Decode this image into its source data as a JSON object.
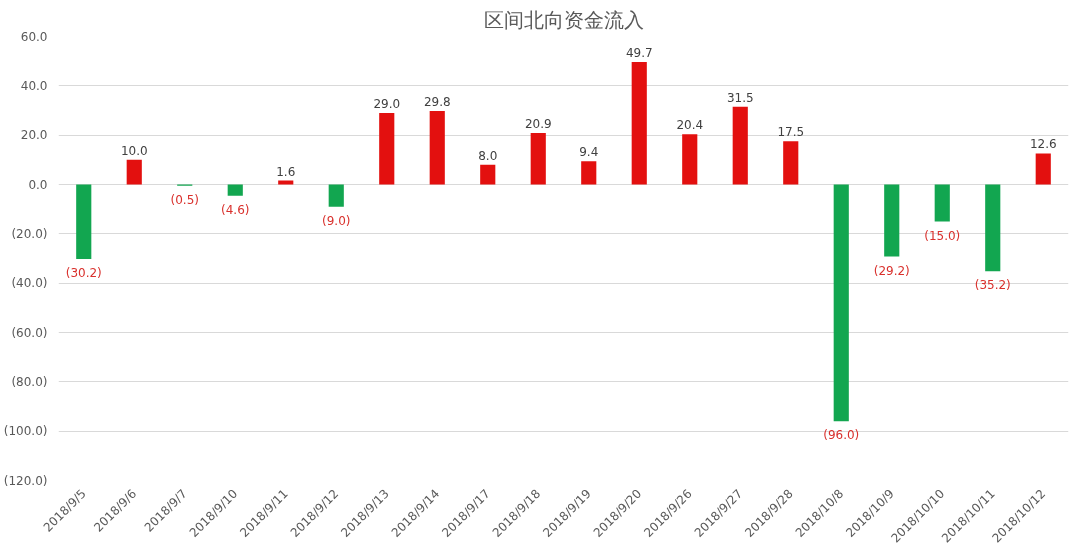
{
  "chart_data": {
    "type": "bar",
    "title": "区间北向资金流入",
    "categories": [
      "2018/9/5",
      "2018/9/6",
      "2018/9/7",
      "2018/9/10",
      "2018/9/11",
      "2018/9/12",
      "2018/9/13",
      "2018/9/14",
      "2018/9/17",
      "2018/9/18",
      "2018/9/19",
      "2018/9/20",
      "2018/9/26",
      "2018/9/27",
      "2018/9/28",
      "2018/10/8",
      "2018/10/9",
      "2018/10/10",
      "2018/10/11",
      "2018/10/12"
    ],
    "values": [
      -30.2,
      10.0,
      -0.5,
      -4.6,
      1.6,
      -9.0,
      29.0,
      29.8,
      8.0,
      20.9,
      9.4,
      49.7,
      20.4,
      31.5,
      17.5,
      -96.0,
      -29.2,
      -15.0,
      -35.2,
      12.6
    ],
    "colors": [
      "#12a650",
      "#e3100f",
      "#12a650",
      "#12a650",
      "#e3100f",
      "#12a650",
      "#e3100f",
      "#e3100f",
      "#e3100f",
      "#e3100f",
      "#e3100f",
      "#e3100f",
      "#e3100f",
      "#e3100f",
      "#e3100f",
      "#12a650",
      "#12a650",
      "#12a650",
      "#12a650",
      "#e3100f"
    ],
    "value_labels": [
      "(30.2)",
      "10.0",
      "(0.5)",
      "(4.6)",
      "1.6",
      "(9.0)",
      "29.0",
      "29.8",
      "8.0",
      "20.9",
      "9.4",
      "49.7",
      "20.4",
      "31.5",
      "17.5",
      "(96.0)",
      "(29.2)",
      "(15.0)",
      "(35.2)",
      "12.6"
    ],
    "ylim": [
      -120,
      60
    ],
    "yticks": [
      {
        "value": 60,
        "label": "60.0"
      },
      {
        "value": 40,
        "label": "40.0"
      },
      {
        "value": 20,
        "label": "20.0"
      },
      {
        "value": 0,
        "label": "0.0"
      },
      {
        "value": -20,
        "label": "(20.0)"
      },
      {
        "value": -40,
        "label": "(40.0)"
      },
      {
        "value": -60,
        "label": "(60.0)"
      },
      {
        "value": -80,
        "label": "(80.0)"
      },
      {
        "value": -100,
        "label": "(100.0)"
      },
      {
        "value": -120,
        "label": "(120.0)"
      }
    ],
    "grid": "y"
  }
}
